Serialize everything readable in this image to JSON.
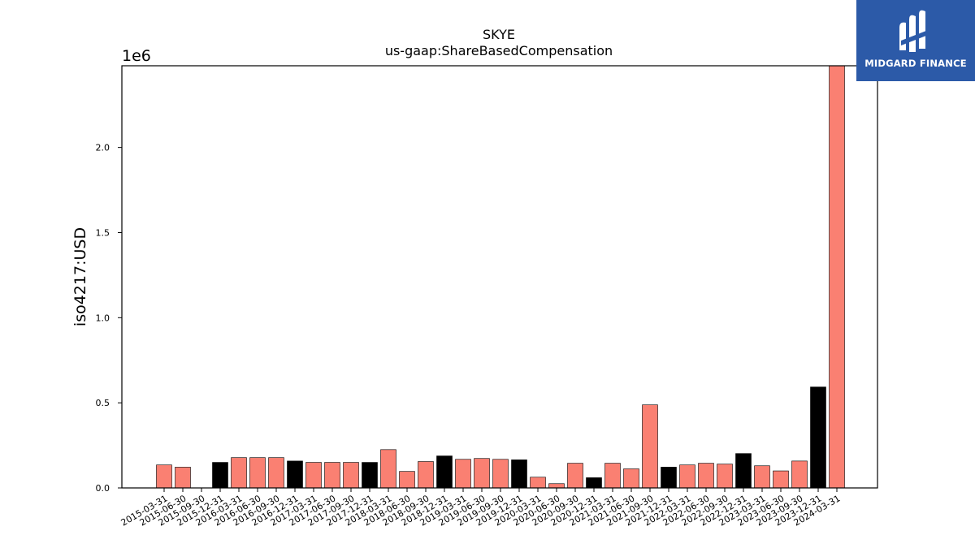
{
  "chart_data": {
    "type": "bar",
    "title": "SKYE",
    "subtitle": "us-gaap:ShareBasedCompensation",
    "ylabel": "iso4217:USD",
    "y_multiplier_label": "1e6",
    "ylim": [
      0,
      2480000
    ],
    "yticks": [
      0,
      500000,
      1000000,
      1500000,
      2000000
    ],
    "ytick_labels": [
      "0.0",
      "0.5",
      "1.0",
      "1.5",
      "2.0"
    ],
    "grid": false,
    "colors": {
      "quarter": "#fa8072",
      "year_end": "#000000"
    },
    "categories": [
      "2015-03-31",
      "2015-06-30",
      "2015-09-30",
      "2015-12-31",
      "2016-03-31",
      "2016-06-30",
      "2016-09-30",
      "2016-12-31",
      "2017-03-31",
      "2017-06-30",
      "2017-09-30",
      "2017-12-31",
      "2018-03-31",
      "2018-06-30",
      "2018-09-30",
      "2018-12-31",
      "2019-03-31",
      "2019-06-30",
      "2019-09-30",
      "2019-12-31",
      "2020-03-31",
      "2020-06-30",
      "2020-09-30",
      "2020-12-31",
      "2021-03-31",
      "2021-06-30",
      "2021-09-30",
      "2021-12-31",
      "2022-03-31",
      "2022-06-30",
      "2022-09-30",
      "2022-12-31",
      "2023-03-31",
      "2023-06-30",
      "2023-09-30",
      "2023-12-31",
      "2024-03-31"
    ],
    "values": [
      135000,
      122000,
      0,
      150000,
      178000,
      178000,
      178000,
      158000,
      150000,
      150000,
      150000,
      150000,
      225000,
      97000,
      155000,
      188000,
      168000,
      173000,
      168000,
      165000,
      63000,
      25000,
      145000,
      60000,
      145000,
      112000,
      488000,
      122000,
      135000,
      145000,
      140000,
      202000,
      130000,
      100000,
      158000,
      593000,
      2480000
    ],
    "year_end_flags": [
      false,
      false,
      false,
      true,
      false,
      false,
      false,
      true,
      false,
      false,
      false,
      true,
      false,
      false,
      false,
      true,
      false,
      false,
      false,
      true,
      false,
      false,
      false,
      true,
      false,
      false,
      false,
      true,
      false,
      false,
      false,
      true,
      false,
      false,
      false,
      true,
      false
    ]
  },
  "logo": {
    "text": "MIDGARD FINANCE",
    "icon": "midgard-logo-icon"
  }
}
